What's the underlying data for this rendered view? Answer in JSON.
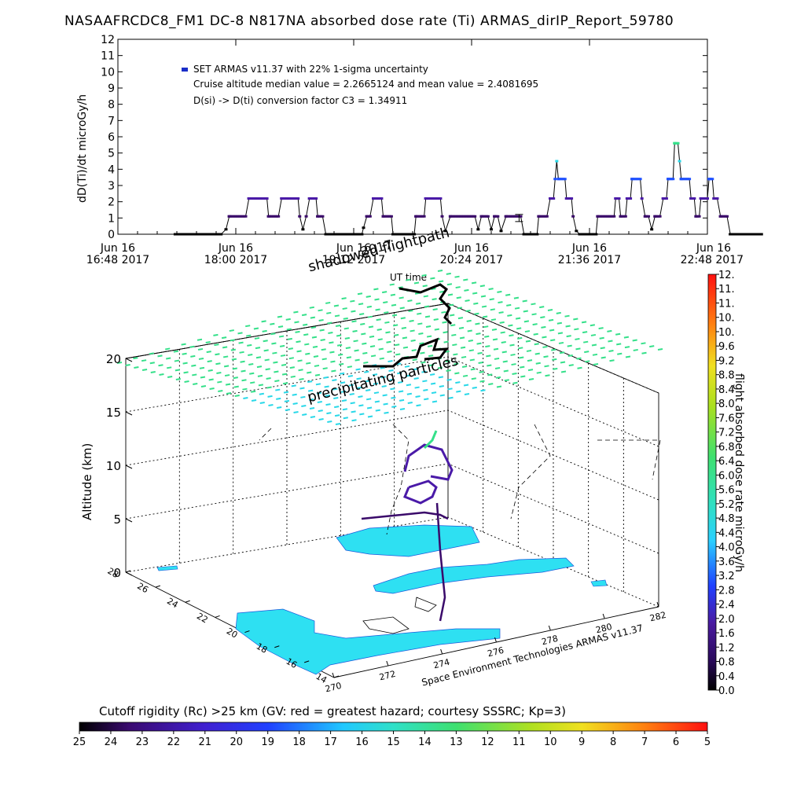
{
  "title": "NASAAFRCDC8_FM1 DC-8   N817NA absorbed dose rate (Ti) ARMAS_dirIP_Report_59780",
  "chart_data": [
    {
      "type": "scatter",
      "name": "dose-rate-timeseries",
      "ylabel": "dD(Ti)/dt microGy/h",
      "xlabel": "UT time",
      "ylim": [
        0,
        12
      ],
      "yticks": [
        "0",
        "1",
        "2",
        "3",
        "4",
        "5",
        "6",
        "7",
        "8",
        "9",
        "10",
        "11",
        "12"
      ],
      "xticks": [
        {
          "line1": "Jun 16",
          "line2": "16:48 2017"
        },
        {
          "line1": "Jun 16",
          "line2": "18:00 2017"
        },
        {
          "line1": "Jun 16",
          "line2": "19:12 2017"
        },
        {
          "line1": "Jun 16",
          "line2": "20:24 2017"
        },
        {
          "line1": "Jun 16",
          "line2": "21:36 2017"
        },
        {
          "line1": "Jun 16",
          "line2": "22:48 2017"
        }
      ],
      "xrange_minutes": [
        0,
        360
      ],
      "legend": [
        "SET ARMAS v11.37 with 22% 1-sigma uncertainty",
        "Cruise altitude median value = 2.2665124 and mean value = 2.4081695",
        "D(si) -> D(ti) conversion factor C3 = 1.34911"
      ],
      "series": [
        {
          "points": [
            [
              35,
              0
            ],
            [
              63,
              0
            ],
            [
              66,
              0.3
            ],
            [
              68,
              1.1
            ],
            [
              78,
              1.1
            ],
            [
              80,
              2.2
            ],
            [
              91,
              2.2
            ],
            [
              92,
              1.1
            ],
            [
              98,
              1.1
            ],
            [
              100,
              2.2
            ],
            [
              110,
              2.2
            ],
            [
              111,
              1.1
            ],
            [
              113,
              0.3
            ],
            [
              115,
              1.1
            ],
            [
              117,
              2.2
            ],
            [
              121,
              2.2
            ],
            [
              122,
              1.1
            ],
            [
              125,
              1.1
            ],
            [
              127,
              0
            ],
            [
              149,
              0
            ],
            [
              150,
              0.4
            ],
            [
              152,
              1.1
            ],
            [
              154,
              1.1
            ],
            [
              156,
              2.2
            ],
            [
              161,
              2.2
            ],
            [
              162,
              1.1
            ],
            [
              167,
              1.1
            ],
            [
              168,
              0
            ],
            [
              181,
              0
            ],
            [
              182,
              1.1
            ],
            [
              187,
              1.1
            ],
            [
              188,
              2.2
            ],
            [
              197,
              2.2
            ],
            [
              198,
              1.1
            ],
            [
              200,
              0.2
            ],
            [
              203,
              1.1
            ],
            [
              218,
              1.1
            ],
            [
              220,
              0.3
            ],
            [
              222,
              1.1
            ],
            [
              226,
              1.1
            ],
            [
              228,
              0.3
            ],
            [
              230,
              1.1
            ],
            [
              232,
              1.1
            ],
            [
              234,
              0.2
            ],
            [
              237,
              1.1
            ],
            [
              246,
              1.1
            ],
            [
              248,
              0
            ],
            [
              256,
              0
            ],
            [
              257,
              1.1
            ],
            [
              262,
              1.1
            ],
            [
              264,
              2.2
            ],
            [
              266,
              2.2
            ],
            [
              267,
              3.4
            ],
            [
              268,
              4.5
            ],
            [
              269,
              3.4
            ],
            [
              273,
              3.4
            ],
            [
              274,
              2.2
            ],
            [
              277,
              2.2
            ],
            [
              278,
              1.1
            ],
            [
              280,
              0.2
            ],
            [
              282,
              0
            ],
            [
              292,
              0
            ],
            [
              293,
              1.1
            ],
            [
              303,
              1.1
            ],
            [
              304,
              2.2
            ],
            [
              306,
              2.2
            ],
            [
              307,
              1.1
            ],
            [
              310,
              1.1
            ],
            [
              311,
              2.2
            ],
            [
              313,
              2.2
            ],
            [
              314,
              3.4
            ],
            [
              319,
              3.4
            ],
            [
              320,
              2.2
            ],
            [
              322,
              1.1
            ],
            [
              324,
              1.1
            ],
            [
              326,
              0.3
            ],
            [
              328,
              1.1
            ],
            [
              331,
              1.1
            ],
            [
              333,
              2.2
            ],
            [
              335,
              2.2
            ],
            [
              336,
              3.4
            ],
            [
              339,
              3.4
            ],
            [
              340,
              5.6
            ],
            [
              342,
              5.6
            ],
            [
              343,
              4.5
            ],
            [
              344,
              3.4
            ],
            [
              349,
              3.4
            ],
            [
              350,
              2.2
            ],
            [
              352,
              2.2
            ],
            [
              353,
              1.1
            ],
            [
              355,
              1.1
            ],
            [
              356,
              2.2
            ],
            [
              360,
              2.2
            ],
            [
              361,
              3.4
            ],
            [
              363,
              3.4
            ],
            [
              364,
              2.2
            ],
            [
              366,
              2.2
            ],
            [
              368,
              1.1
            ],
            [
              372,
              1.1
            ],
            [
              374,
              0
            ],
            [
              393,
              0
            ]
          ]
        }
      ],
      "error_bar": {
        "x": 245,
        "y": 1.0,
        "low": 0.78,
        "high": 1.22
      }
    },
    {
      "type": "scatter",
      "name": "3d-flight-track",
      "ylabel": "Altitude (km)",
      "zticks": [
        "0",
        "5",
        "10",
        "15",
        "20"
      ],
      "zlim": [
        0,
        20
      ],
      "lon_ticks": [
        "270",
        "272",
        "274",
        "276",
        "278",
        "280",
        "282"
      ],
      "lat_ticks": [
        "14",
        "16",
        "18",
        "20",
        "22",
        "24",
        "26",
        "28"
      ],
      "annotations": [
        "shadowed flightpath",
        "precipitating particles",
        "Space Environment Technologies ARMAS v11.37"
      ],
      "overlay_text": "2017"
    },
    {
      "type": "heatmap",
      "name": "dose-rate-colorbar",
      "label": "flight absorbed dose rate microGy/h",
      "ticks": [
        "0.0",
        "0.4",
        "0.8",
        "1.2",
        "1.6",
        "2.0",
        "2.4",
        "2.8",
        "3.2",
        "3.6",
        "4.0",
        "4.4",
        "4.8",
        "5.2",
        "5.6",
        "6.0",
        "6.4",
        "6.8",
        "7.2",
        "7.6",
        "8.0",
        "8.4",
        "8.8",
        "9.2",
        "9.6",
        "10.",
        "10.",
        "11.",
        "11.",
        "12."
      ]
    },
    {
      "type": "heatmap",
      "name": "cutoff-rigidity-colorbar",
      "label": "Cutoff rigidity (Rc) >25 km (GV: red = greatest hazard; courtesy SSSRC; Kp=3)",
      "ticks": [
        "25",
        "24",
        "23",
        "22",
        "21",
        "20",
        "19",
        "18",
        "17",
        "16",
        "15",
        "14",
        "13",
        "12",
        "11",
        "10",
        "9",
        "8",
        "7",
        "6",
        "5"
      ]
    }
  ],
  "colors": {
    "dose_dark": "#3a0a6a",
    "dose_black": "#000000",
    "dose_blue": "#1e3cff",
    "dose_cyan": "#29d8e8",
    "dose_green": "#35e08a",
    "rc_cyan": "#2ee0f2",
    "grid": "#000000"
  }
}
